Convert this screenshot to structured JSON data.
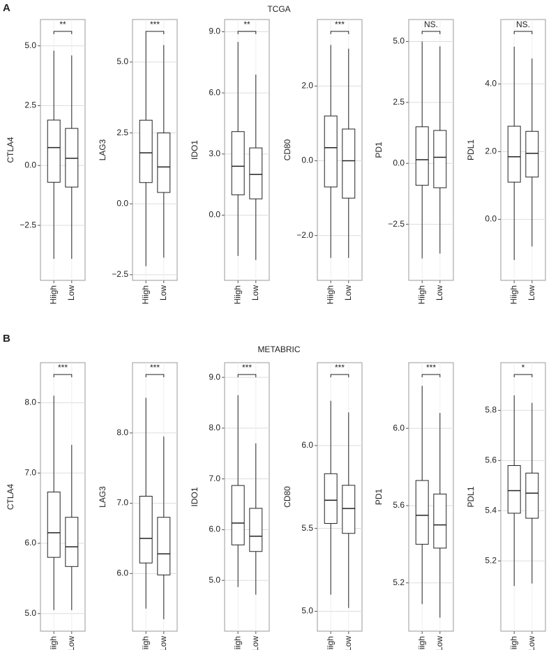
{
  "panels": [
    {
      "label": "A",
      "title": "TCGA"
    },
    {
      "label": "B",
      "title": "METABRIC"
    }
  ],
  "chart_data": [
    {
      "type": "box",
      "ylabel": "CTLA4",
      "categories": [
        "Hiigh",
        "Low"
      ],
      "significance": "**",
      "ylim": [
        -4.8,
        6.1
      ],
      "yticks": [
        {
          "value": -2.5,
          "label": "−2.5"
        },
        {
          "value": 0,
          "label": "0.0"
        },
        {
          "value": 2.5,
          "label": "2.5"
        },
        {
          "value": 5,
          "label": "5.0"
        }
      ],
      "whisker_low": [
        -3.9,
        -3.9
      ],
      "q1": [
        -0.7,
        -0.9
      ],
      "median": [
        0.75,
        0.3
      ],
      "q3": [
        1.9,
        1.55
      ],
      "whisker_high": [
        4.8,
        4.6
      ],
      "grid": true
    },
    {
      "type": "box",
      "ylabel": "LAG3",
      "categories": [
        "Hiigh",
        "Low"
      ],
      "significance": "***",
      "ylim": [
        -2.7,
        6.5
      ],
      "yticks": [
        {
          "value": -2.5,
          "label": "−2.5"
        },
        {
          "value": 0,
          "label": "0.0"
        },
        {
          "value": 2.5,
          "label": "2.5"
        },
        {
          "value": 5,
          "label": "5.0"
        }
      ],
      "whisker_low": [
        -2.2,
        -1.9
      ],
      "q1": [
        0.75,
        0.4
      ],
      "median": [
        1.8,
        1.3
      ],
      "q3": [
        2.95,
        2.5
      ],
      "whisker_high": [
        6.0,
        5.6
      ],
      "grid": true
    },
    {
      "type": "box",
      "ylabel": "IDO1",
      "categories": [
        "Hiigh",
        "Low"
      ],
      "significance": "**",
      "ylim": [
        -3.2,
        9.6
      ],
      "yticks": [
        {
          "value": 0,
          "label": "0.0"
        },
        {
          "value": 3,
          "label": "3.0"
        },
        {
          "value": 6,
          "label": "6.0"
        },
        {
          "value": 9,
          "label": "9.0"
        }
      ],
      "whisker_low": [
        -2.0,
        -2.2
      ],
      "q1": [
        1.0,
        0.8
      ],
      "median": [
        2.4,
        2.0
      ],
      "q3": [
        4.1,
        3.3
      ],
      "whisker_high": [
        8.5,
        6.9
      ],
      "grid": true
    },
    {
      "type": "box",
      "ylabel": "CD80",
      "categories": [
        "Hiigh",
        "Low"
      ],
      "significance": "***",
      "ylim": [
        -3.2,
        3.78
      ],
      "yticks": [
        {
          "value": -2,
          "label": "−2.0"
        },
        {
          "value": 0,
          "label": "0.0"
        },
        {
          "value": 2,
          "label": "2.0"
        }
      ],
      "whisker_low": [
        -2.6,
        -2.6
      ],
      "q1": [
        -0.7,
        -1.0
      ],
      "median": [
        0.35,
        0.0
      ],
      "q3": [
        1.2,
        0.85
      ],
      "whisker_high": [
        3.1,
        3.0
      ],
      "grid": true
    },
    {
      "type": "box",
      "ylabel": "PD1",
      "categories": [
        "Hiigh",
        "Low"
      ],
      "significance": "NS.",
      "ylim": [
        -4.8,
        5.9
      ],
      "yticks": [
        {
          "value": -2.5,
          "label": "−2.5"
        },
        {
          "value": 0,
          "label": "0.0"
        },
        {
          "value": 2.5,
          "label": "2.5"
        },
        {
          "value": 5,
          "label": "5.0"
        }
      ],
      "whisker_low": [
        -3.9,
        -3.7
      ],
      "q1": [
        -0.9,
        -1.0
      ],
      "median": [
        0.15,
        0.25
      ],
      "q3": [
        1.5,
        1.35
      ],
      "whisker_high": [
        5.0,
        4.8
      ],
      "grid": true
    },
    {
      "type": "box",
      "ylabel": "PDL1",
      "categories": [
        "Hiigh",
        "Low"
      ],
      "significance": "NS.",
      "ylim": [
        -1.8,
        5.9
      ],
      "yticks": [
        {
          "value": 0,
          "label": "0.0"
        },
        {
          "value": 2,
          "label": "2.0"
        },
        {
          "value": 4,
          "label": "4.0"
        }
      ],
      "whisker_low": [
        -1.2,
        -0.8
      ],
      "q1": [
        1.1,
        1.25
      ],
      "median": [
        1.85,
        1.95
      ],
      "q3": [
        2.75,
        2.6
      ],
      "whisker_high": [
        5.1,
        4.75
      ],
      "grid": true
    },
    {
      "type": "box",
      "ylabel": "CTLA4",
      "categories": [
        "Hiigh",
        "Low"
      ],
      "significance": "***",
      "ylim": [
        4.75,
        8.57
      ],
      "yticks": [
        {
          "value": 5,
          "label": "5.0"
        },
        {
          "value": 6,
          "label": "6.0"
        },
        {
          "value": 7,
          "label": "7.0"
        },
        {
          "value": 8,
          "label": "8.0"
        }
      ],
      "whisker_low": [
        5.05,
        5.05
      ],
      "q1": [
        5.8,
        5.67
      ],
      "median": [
        6.15,
        5.95
      ],
      "q3": [
        6.73,
        6.37
      ],
      "whisker_high": [
        8.1,
        7.4
      ],
      "grid": true
    },
    {
      "type": "box",
      "ylabel": "LAG3",
      "categories": [
        "Hiigh",
        "Low"
      ],
      "significance": "***",
      "ylim": [
        5.18,
        9.0
      ],
      "yticks": [
        {
          "value": 6,
          "label": "6.0"
        },
        {
          "value": 7,
          "label": "7.0"
        },
        {
          "value": 8,
          "label": "8.0"
        }
      ],
      "whisker_low": [
        5.5,
        5.35
      ],
      "q1": [
        6.15,
        5.98
      ],
      "median": [
        6.5,
        6.28
      ],
      "q3": [
        7.1,
        6.8
      ],
      "whisker_high": [
        8.5,
        7.95
      ],
      "grid": true
    },
    {
      "type": "box",
      "ylabel": "IDO1",
      "categories": [
        "Hiigh",
        "Low"
      ],
      "significance": "***",
      "ylim": [
        4.0,
        9.29
      ],
      "yticks": [
        {
          "value": 5,
          "label": "5.0"
        },
        {
          "value": 6,
          "label": "6.0"
        },
        {
          "value": 7,
          "label": "7.0"
        },
        {
          "value": 8,
          "label": "8.0"
        },
        {
          "value": 9,
          "label": "9.0"
        }
      ],
      "whisker_low": [
        4.87,
        4.72
      ],
      "q1": [
        5.7,
        5.57
      ],
      "median": [
        6.13,
        5.87
      ],
      "q3": [
        6.87,
        6.42
      ],
      "whisker_high": [
        8.65,
        7.7
      ],
      "grid": true
    },
    {
      "type": "box",
      "ylabel": "CD80",
      "categories": [
        "Hiigh",
        "Low"
      ],
      "significance": "***",
      "ylim": [
        4.88,
        6.5
      ],
      "yticks": [
        {
          "value": 5,
          "label": "5.0"
        },
        {
          "value": 5.5,
          "label": "5.5"
        },
        {
          "value": 6,
          "label": "6.0"
        }
      ],
      "whisker_low": [
        5.1,
        5.02
      ],
      "q1": [
        5.53,
        5.47
      ],
      "median": [
        5.67,
        5.62
      ],
      "q3": [
        5.83,
        5.76
      ],
      "whisker_high": [
        6.27,
        6.2
      ],
      "grid": true
    },
    {
      "type": "box",
      "ylabel": "PD1",
      "categories": [
        "Hiigh",
        "Low"
      ],
      "significance": "***",
      "ylim": [
        4.95,
        6.34
      ],
      "yticks": [
        {
          "value": 5.2,
          "label": "5.2"
        },
        {
          "value": 5.6,
          "label": "5.6"
        },
        {
          "value": 6,
          "label": "6.0"
        }
      ],
      "whisker_low": [
        5.09,
        5.02
      ],
      "q1": [
        5.4,
        5.38
      ],
      "median": [
        5.55,
        5.5
      ],
      "q3": [
        5.73,
        5.66
      ],
      "whisker_high": [
        6.22,
        6.08
      ],
      "grid": true
    },
    {
      "type": "box",
      "ylabel": "PDL1",
      "categories": [
        "Hiigh",
        "Low"
      ],
      "significance": "*",
      "ylim": [
        4.92,
        5.99
      ],
      "yticks": [
        {
          "value": 5.2,
          "label": "5.2"
        },
        {
          "value": 5.4,
          "label": "5.4"
        },
        {
          "value": 5.6,
          "label": "5.6"
        },
        {
          "value": 5.8,
          "label": "5.8"
        }
      ],
      "whisker_low": [
        5.1,
        5.11
      ],
      "q1": [
        5.39,
        5.37
      ],
      "median": [
        5.48,
        5.47
      ],
      "q3": [
        5.58,
        5.55
      ],
      "whisker_high": [
        5.86,
        5.83
      ],
      "grid": true
    }
  ]
}
